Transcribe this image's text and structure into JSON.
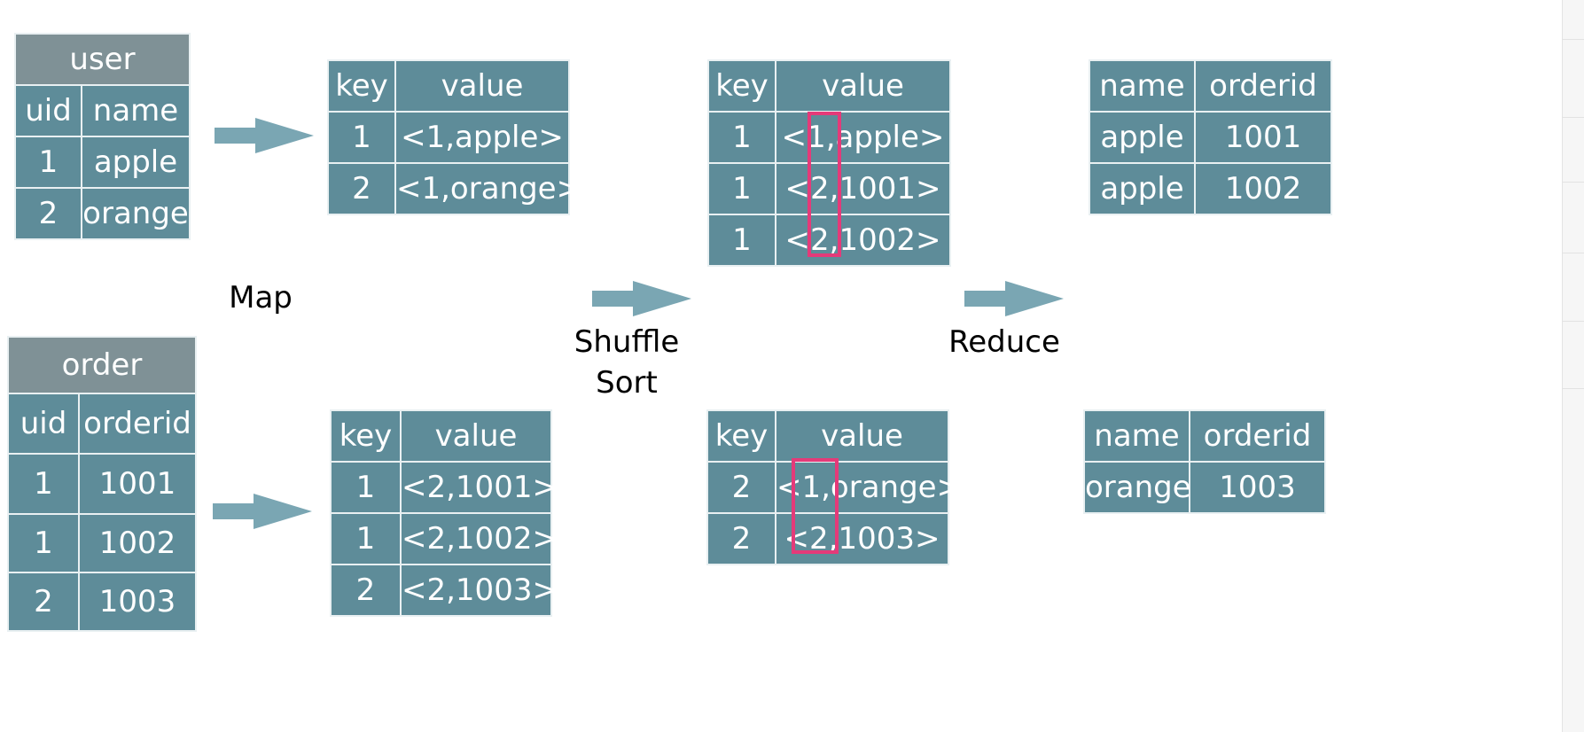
{
  "user_table": {
    "title": "user",
    "headers": [
      "uid",
      "name"
    ],
    "rows": [
      [
        "1",
        "apple"
      ],
      [
        "2",
        "orange"
      ]
    ]
  },
  "order_table": {
    "title": "order",
    "headers": [
      "uid",
      "orderid"
    ],
    "rows": [
      [
        "1",
        "1001"
      ],
      [
        "1",
        "1002"
      ],
      [
        "2",
        "1003"
      ]
    ]
  },
  "map_user": {
    "headers": [
      "key",
      "value"
    ],
    "rows": [
      [
        "1",
        "<1,apple>"
      ],
      [
        "2",
        "<1,orange>"
      ]
    ]
  },
  "map_order": {
    "headers": [
      "key",
      "value"
    ],
    "rows": [
      [
        "1",
        "<2,1001>"
      ],
      [
        "1",
        "<2,1002>"
      ],
      [
        "2",
        "<2,1003>"
      ]
    ]
  },
  "shuffle_1": {
    "headers": [
      "key",
      "value"
    ],
    "rows": [
      [
        "1",
        "<1,apple>"
      ],
      [
        "1",
        "<2,1001>"
      ],
      [
        "1",
        "<2,1002>"
      ]
    ]
  },
  "shuffle_2": {
    "headers": [
      "key",
      "value"
    ],
    "rows": [
      [
        "2",
        "<1,orange>"
      ],
      [
        "2",
        "<2,1003>"
      ]
    ]
  },
  "reduce_1": {
    "headers": [
      "name",
      "orderid"
    ],
    "rows": [
      [
        "apple",
        "1001"
      ],
      [
        "apple",
        "1002"
      ]
    ]
  },
  "reduce_2": {
    "headers": [
      "name",
      "orderid"
    ],
    "rows": [
      [
        "orange",
        "1003"
      ]
    ]
  },
  "labels": {
    "map": "Map",
    "shuffle_line1": "Shuffle",
    "shuffle_line2": "Sort",
    "reduce": "Reduce"
  },
  "colors": {
    "cell": "#5e8c99",
    "title_cell": "#7f9196",
    "arrow": "#7aa6b3",
    "highlight": "#e53a79"
  }
}
